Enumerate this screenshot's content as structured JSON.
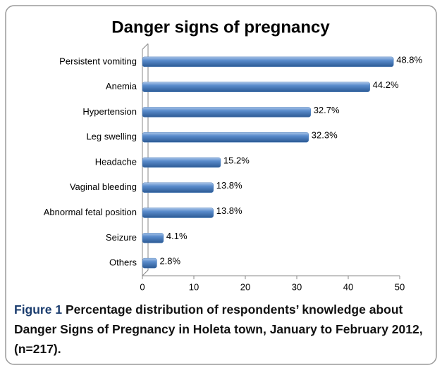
{
  "chart_data": {
    "type": "barh",
    "title": "Danger signs of pregnancy",
    "categories": [
      "Persistent vomiting",
      "Anemia",
      "Hypertension",
      "Leg swelling",
      "Headache",
      "Vaginal bleeding",
      "Abnormal fetal position",
      "Seizure",
      "Others"
    ],
    "values": [
      48.8,
      44.2,
      32.7,
      32.3,
      15.2,
      13.8,
      13.8,
      4.1,
      2.8
    ],
    "value_labels": [
      "48.8%",
      "44.2%",
      "32.7%",
      "32.3%",
      "15.2%",
      "13.8%",
      "13.8%",
      "4.1%",
      "2.8%"
    ],
    "color": "#4f81bd",
    "xlim": [
      0,
      50
    ],
    "xticks": [
      0,
      10,
      20,
      30,
      40,
      50
    ]
  },
  "caption_label": "Figure 1",
  "caption": "Percentage distribution of respondents’ knowledge about Danger Signs of Pregnancy in Holeta town, January to February 2012, (n=217)."
}
